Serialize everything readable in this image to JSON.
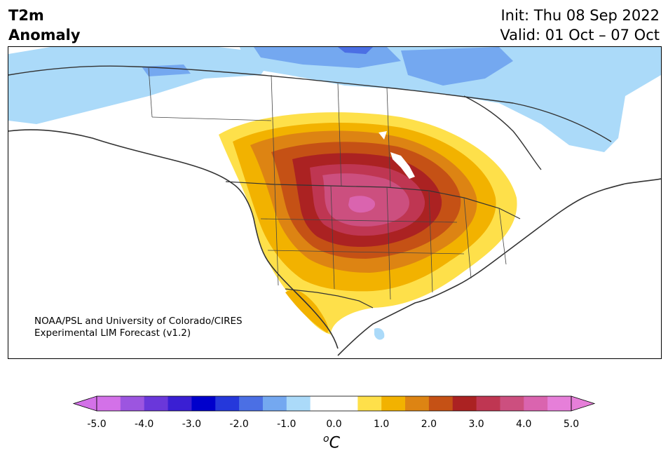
{
  "title": {
    "left_line1": "T2m",
    "left_line2": "Anomaly",
    "init": "Init: Thu 08 Sep 2022",
    "valid": "Valid: 01 Oct – 07 Oct"
  },
  "credit": {
    "line1": "NOAA/PSL and University of Colorado/CIRES",
    "line2": "Experimental LIM Forecast (v1.2)"
  },
  "colorbar": {
    "colors": [
      "#d371e8",
      "#9c55e0",
      "#6a37da",
      "#3a1fd3",
      "#0000cc",
      "#2538db",
      "#4b6fe4",
      "#74a8f0",
      "#abdaf9",
      "#ffffff",
      "#ffffff",
      "#fee04a",
      "#f2b200",
      "#dd8413",
      "#c55115",
      "#ab2222",
      "#bf3652",
      "#cc4f7f",
      "#da64af",
      "#e67fd9"
    ],
    "ticks": [
      "-5.0",
      "-4.0",
      "-3.0",
      "-2.0",
      "-1.0",
      "0.0",
      "1.0",
      "2.0",
      "3.0",
      "4.0",
      "5.0"
    ],
    "unit_symbol": "o",
    "unit_letter": "C"
  }
}
